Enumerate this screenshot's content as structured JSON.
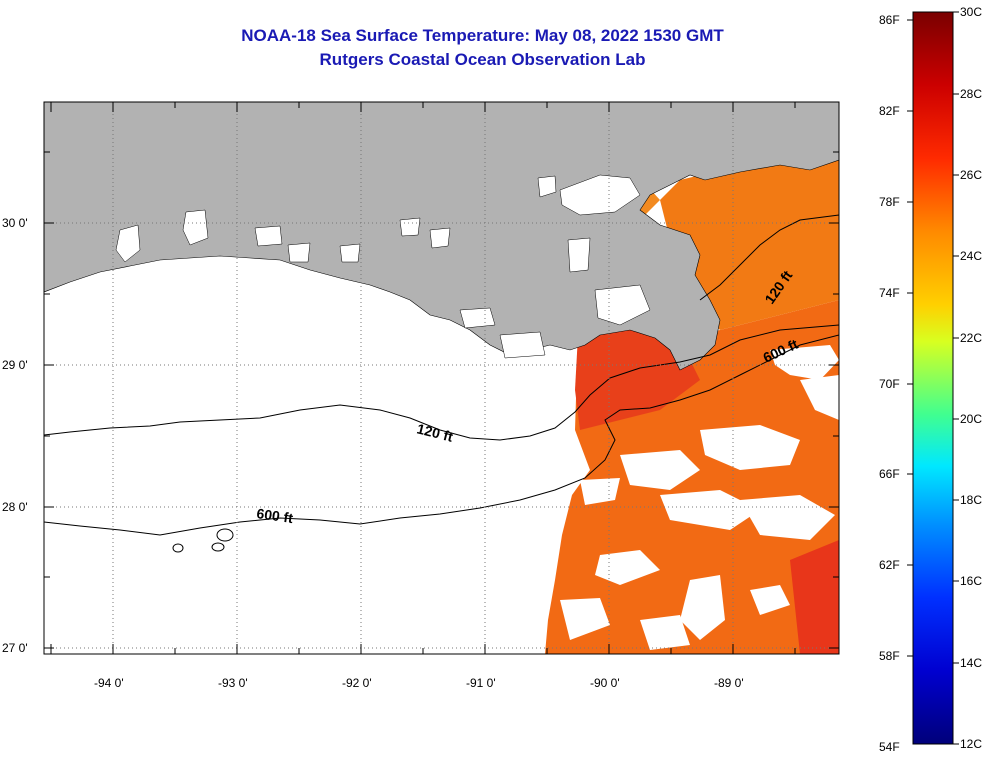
{
  "header": {
    "title": "NOAA-18 Sea Surface Temperature:  May 08, 2022 1530 GMT",
    "subtitle": "Rutgers Coastal Ocean Observation Lab"
  },
  "map": {
    "lat_labels": [
      "30 0'",
      "29 0'",
      "28 0'",
      "27 0'"
    ],
    "lon_labels": [
      "-94 0'",
      "-93 0'",
      "-92 0'",
      "-91 0'",
      "-90 0'",
      "-89 0'"
    ],
    "contours": [
      {
        "label": "120 ft",
        "depth": "120 ft"
      },
      {
        "label": "600 ft",
        "depth": "600 ft"
      },
      {
        "label": "120 ft",
        "depth": "120 ft"
      },
      {
        "label": "600 ft",
        "depth": "600 ft"
      }
    ],
    "colors": {
      "land": "#b2b2b2",
      "water_nodata": "#ffffff",
      "sst_warm": "#f26a14",
      "sst_hot": "#e8361a"
    }
  },
  "colorbar": {
    "fahrenheit": [
      "86F",
      "82F",
      "78F",
      "74F",
      "70F",
      "66F",
      "62F",
      "58F",
      "54F"
    ],
    "celsius": [
      "30C",
      "28C",
      "26C",
      "24C",
      "22C",
      "20C",
      "18C",
      "16C",
      "14C",
      "12C"
    ],
    "colors": [
      "#7a0000",
      "#cc0000",
      "#ff3a00",
      "#ff8a00",
      "#ffd000",
      "#d8ff20",
      "#60ff80",
      "#00e0ff",
      "#0090ff",
      "#0030ff",
      "#0000c0",
      "#00007a"
    ]
  }
}
